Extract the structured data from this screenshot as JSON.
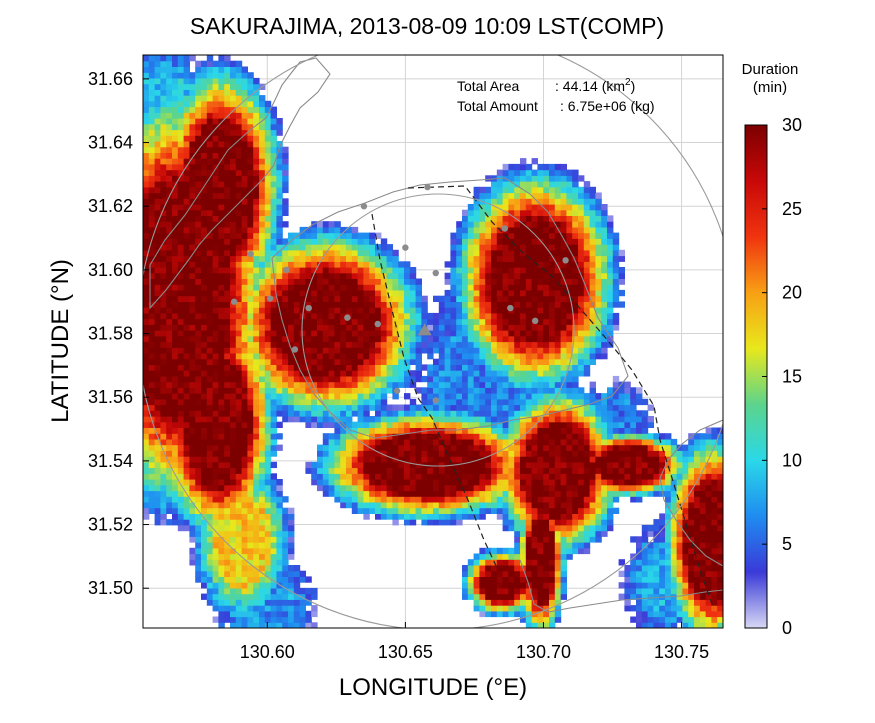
{
  "chart_data": {
    "type": "heatmap",
    "title": "SAKURAJIMA, 2013-08-09 10:09 LST(COMP)",
    "xlabel": "LONGITUDE (°E)",
    "ylabel": "LATITUDE (°N)",
    "xlim": [
      130.555,
      130.765
    ],
    "ylim": [
      31.4875,
      31.6675
    ],
    "x_ticks": [
      "130.60",
      "130.65",
      "130.70",
      "130.75"
    ],
    "x_tick_values": [
      130.6,
      130.65,
      130.7,
      130.75
    ],
    "y_ticks": [
      "31.50",
      "31.52",
      "31.54",
      "31.56",
      "31.58",
      "31.60",
      "31.62",
      "31.64",
      "31.66"
    ],
    "y_tick_values": [
      31.5,
      31.52,
      31.54,
      31.56,
      31.58,
      31.6,
      31.62,
      31.64,
      31.66
    ],
    "grid": true,
    "annotations": {
      "area_label": "Total Area",
      "area_value": ": 44.14 (km",
      "area_sup": "2",
      "area_close": ")",
      "amount_label": "Total Amount",
      "amount_value": ": 6.75e+06 (kg)"
    },
    "colorbar": {
      "title_line1": "Duration",
      "title_line2": "(min)",
      "min": 0,
      "max": 30,
      "ticks": [
        "0",
        "5",
        "10",
        "15",
        "20",
        "25",
        "30"
      ],
      "tick_values": [
        0,
        5,
        10,
        15,
        20,
        25,
        30
      ],
      "colors": [
        "#d8d8f4",
        "#3a3ad8",
        "#1f8cf0",
        "#2ad8e8",
        "#5cd48c",
        "#e8e81c",
        "#f8a014",
        "#f03410",
        "#c80808",
        "#7c0000"
      ]
    },
    "volcano": {
      "lon": 130.657,
      "lat": 31.581
    },
    "stations": [
      {
        "lon": 130.588,
        "lat": 31.59
      },
      {
        "lon": 130.594,
        "lat": 31.605
      },
      {
        "lon": 130.601,
        "lat": 31.591
      },
      {
        "lon": 130.607,
        "lat": 31.6
      },
      {
        "lon": 130.61,
        "lat": 31.575
      },
      {
        "lon": 130.615,
        "lat": 31.588
      },
      {
        "lon": 130.629,
        "lat": 31.585
      },
      {
        "lon": 130.64,
        "lat": 31.583
      },
      {
        "lon": 130.635,
        "lat": 31.62
      },
      {
        "lon": 130.65,
        "lat": 31.607
      },
      {
        "lon": 130.658,
        "lat": 31.626
      },
      {
        "lon": 130.661,
        "lat": 31.599
      },
      {
        "lon": 130.647,
        "lat": 31.562
      },
      {
        "lon": 130.661,
        "lat": 31.559
      },
      {
        "lon": 130.686,
        "lat": 31.613
      },
      {
        "lon": 130.688,
        "lat": 31.588
      },
      {
        "lon": 130.697,
        "lat": 31.584
      },
      {
        "lon": 130.708,
        "lat": 31.603
      }
    ],
    "cells": [
      {
        "lon": 130.566,
        "lat": 31.59,
        "rx": 0.02,
        "ry": 0.038,
        "duration": 30
      },
      {
        "lon": 130.582,
        "lat": 31.625,
        "rx": 0.013,
        "ry": 0.022,
        "duration": 30
      },
      {
        "lon": 130.581,
        "lat": 31.551,
        "rx": 0.012,
        "ry": 0.021,
        "duration": 30
      },
      {
        "lon": 130.62,
        "lat": 31.582,
        "rx": 0.02,
        "ry": 0.017,
        "duration": 30
      },
      {
        "lon": 130.696,
        "lat": 31.596,
        "rx": 0.017,
        "ry": 0.02,
        "duration": 30
      },
      {
        "lon": 130.657,
        "lat": 31.538,
        "rx": 0.023,
        "ry": 0.01,
        "duration": 30
      },
      {
        "lon": 130.704,
        "lat": 31.536,
        "rx": 0.013,
        "ry": 0.015,
        "duration": 30
      },
      {
        "lon": 130.73,
        "lat": 31.538,
        "rx": 0.012,
        "ry": 0.006,
        "duration": 30
      },
      {
        "lon": 130.76,
        "lat": 31.514,
        "rx": 0.01,
        "ry": 0.019,
        "duration": 30
      },
      {
        "lon": 130.684,
        "lat": 31.501,
        "rx": 0.008,
        "ry": 0.006,
        "duration": 30
      },
      {
        "lon": 130.698,
        "lat": 31.508,
        "rx": 0.005,
        "ry": 0.014,
        "duration": 30
      },
      {
        "lon": 130.59,
        "lat": 31.514,
        "rx": 0.01,
        "ry": 0.014,
        "duration": 18
      },
      {
        "lon": 130.562,
        "lat": 31.648,
        "rx": 0.01,
        "ry": 0.012,
        "duration": 9
      },
      {
        "lon": 130.676,
        "lat": 31.56,
        "rx": 0.014,
        "ry": 0.02,
        "duration": 6
      },
      {
        "lon": 130.724,
        "lat": 31.552,
        "rx": 0.008,
        "ry": 0.007,
        "duration": 6
      },
      {
        "lon": 130.745,
        "lat": 31.502,
        "rx": 0.01,
        "ry": 0.01,
        "duration": 8
      },
      {
        "lon": 130.598,
        "lat": 31.493,
        "rx": 0.01,
        "ry": 0.01,
        "duration": 7
      }
    ]
  }
}
